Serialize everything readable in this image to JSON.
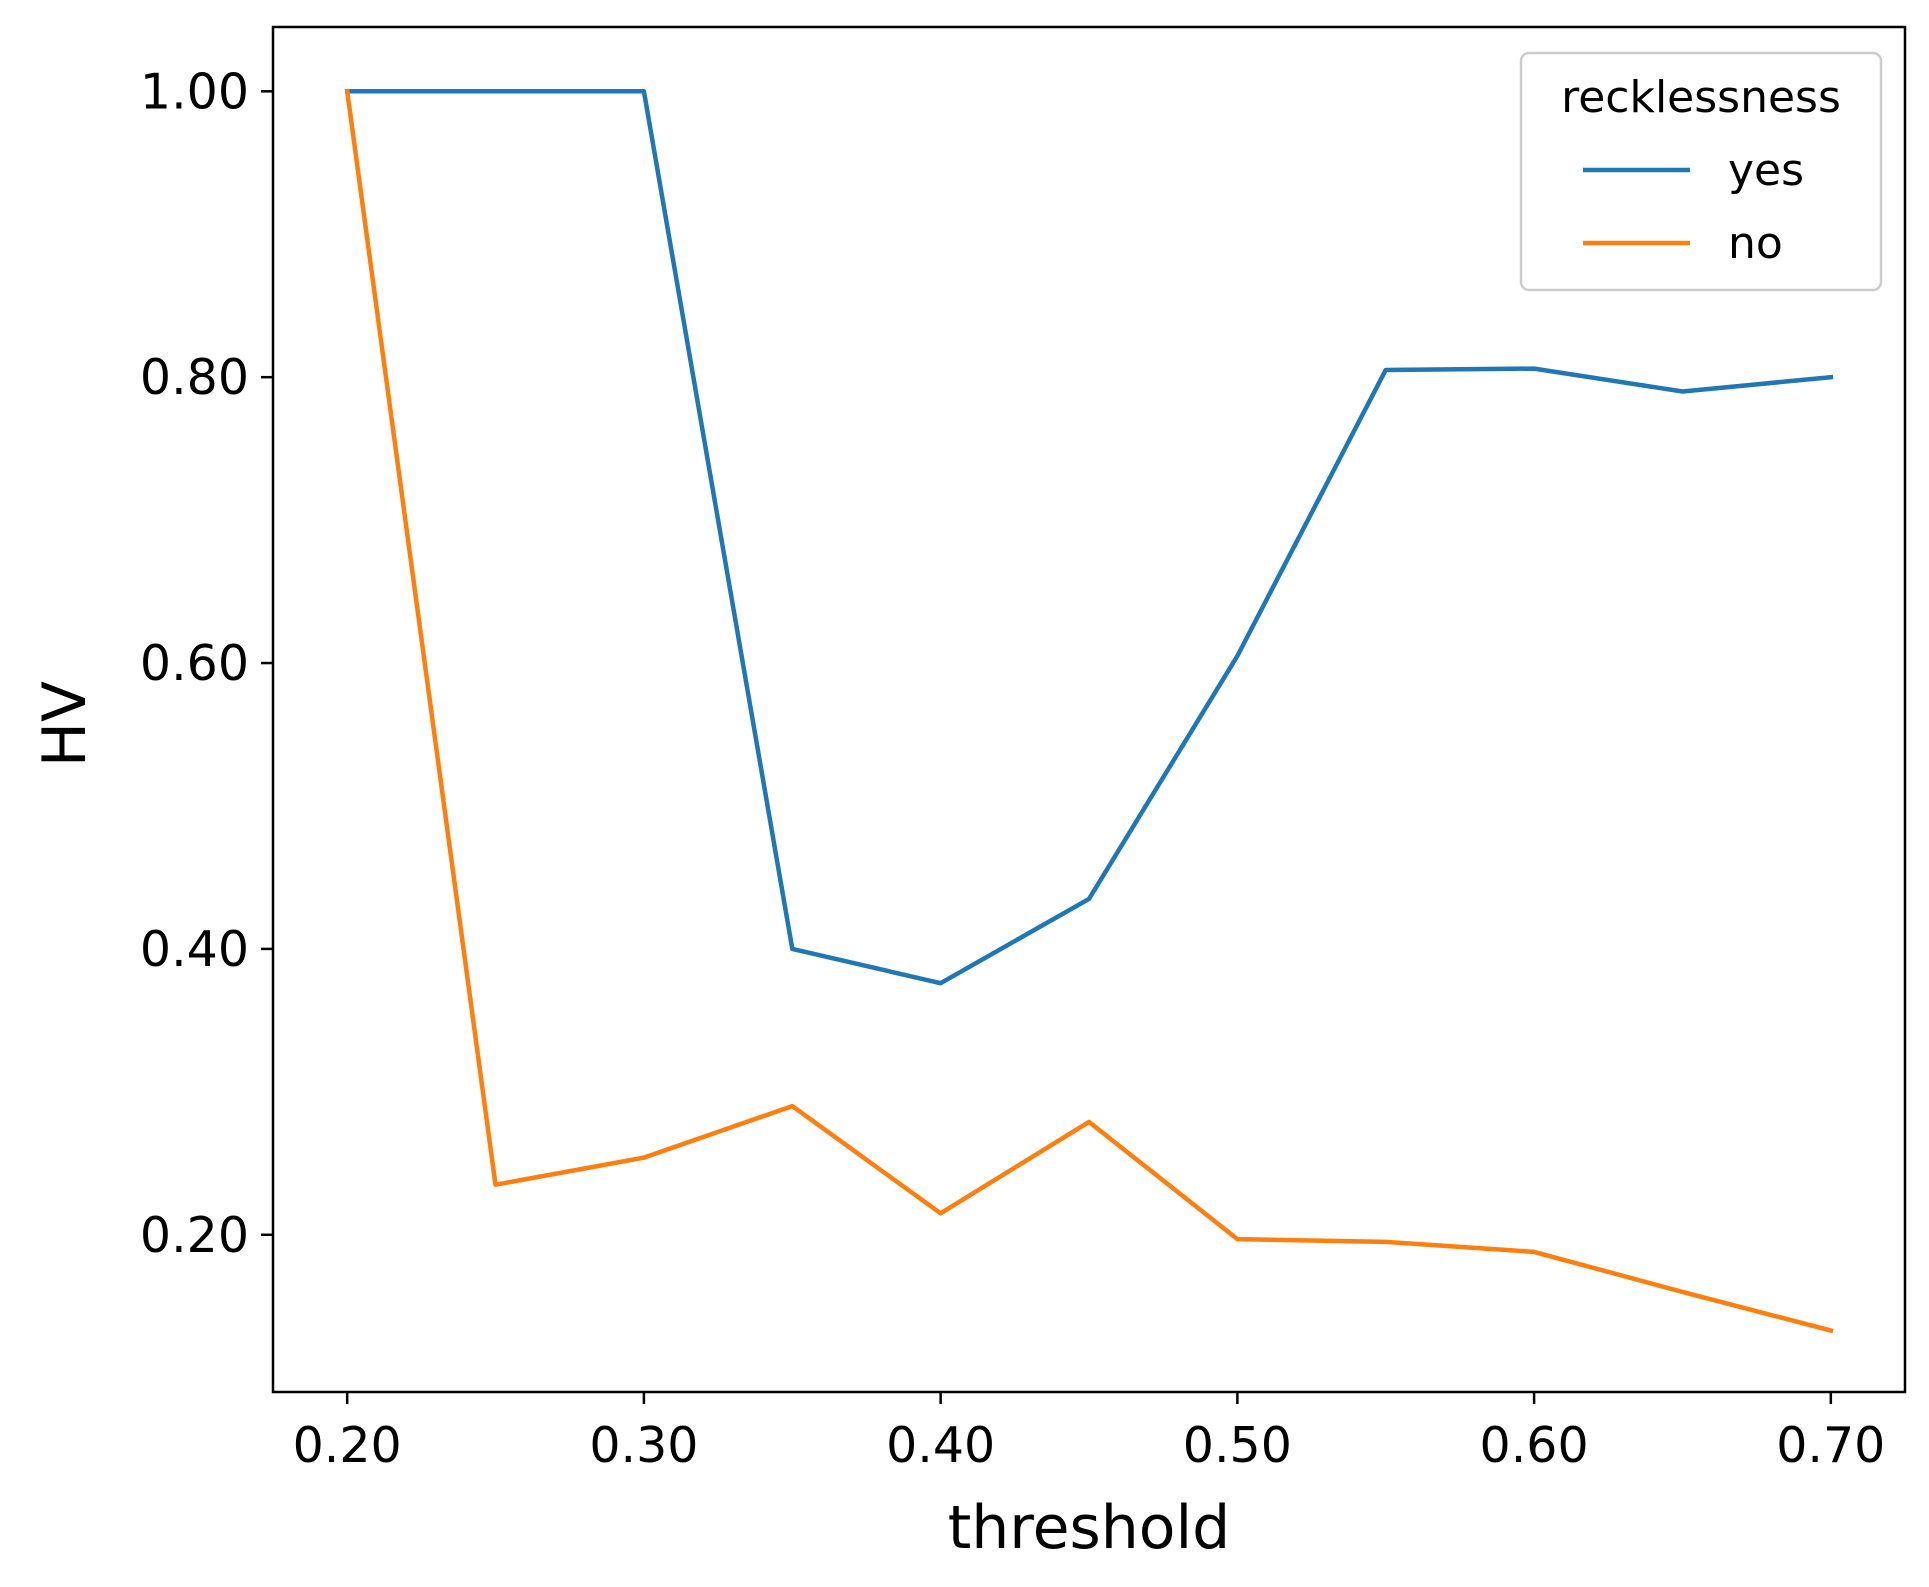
{
  "chart_data": {
    "type": "line",
    "title": "",
    "xlabel": "threshold",
    "ylabel": "HV",
    "x": [
      0.2,
      0.25,
      0.3,
      0.35,
      0.4,
      0.45,
      0.5,
      0.55,
      0.6,
      0.65,
      0.7
    ],
    "xlim": [
      0.175,
      0.725
    ],
    "ylim": [
      0.09,
      1.045
    ],
    "x_ticks": [
      "0.20",
      "0.30",
      "0.40",
      "0.50",
      "0.60",
      "0.70"
    ],
    "y_ticks": [
      "0.20",
      "0.40",
      "0.60",
      "0.80",
      "1.00"
    ],
    "grid": false,
    "legend": {
      "title": "recklessness",
      "placement": "top-right"
    },
    "series": [
      {
        "name": "yes",
        "color": "#1f77b4",
        "values": [
          1.0,
          1.0,
          1.0,
          0.4,
          0.376,
          0.435,
          0.605,
          0.805,
          0.806,
          0.79,
          0.8
        ]
      },
      {
        "name": "no",
        "color": "#ff7f0e",
        "values": [
          1.0,
          0.235,
          0.254,
          0.29,
          0.215,
          0.279,
          0.197,
          0.195,
          0.188,
          0.16,
          0.133
        ]
      }
    ]
  }
}
